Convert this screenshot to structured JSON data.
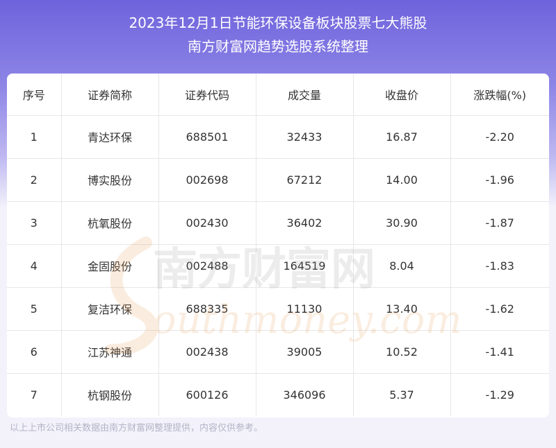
{
  "title": {
    "line1": "2023年12月1日节能环保设备板块股票七大熊股",
    "line2": "南方财富网趋势选股系统整理"
  },
  "table": {
    "headers": [
      "序号",
      "证券简称",
      "证券代码",
      "成交量",
      "收盘价",
      "涨跌幅(%)"
    ],
    "rows": [
      [
        "1",
        "青达环保",
        "688501",
        "32433",
        "16.87",
        "-2.20"
      ],
      [
        "2",
        "博实股份",
        "002698",
        "67212",
        "14.00",
        "-1.96"
      ],
      [
        "3",
        "杭氧股份",
        "002430",
        "36402",
        "30.90",
        "-1.87"
      ],
      [
        "4",
        "金固股份",
        "002488",
        "164519",
        "8.04",
        "-1.83"
      ],
      [
        "5",
        "复洁环保",
        "688335",
        "11130",
        "13.40",
        "-1.62"
      ],
      [
        "6",
        "江苏神通",
        "002438",
        "39005",
        "10.52",
        "-1.41"
      ],
      [
        "7",
        "杭钢股份",
        "600126",
        "346096",
        "5.37",
        "-1.29"
      ]
    ]
  },
  "watermark": {
    "cn": "南方财富网",
    "en": "outhmoney.com"
  },
  "footer": "以上上市公司相关数据由南方财富网整理提供，内容仅供参考。",
  "colors": {
    "header_top": "#6f63dc",
    "background": "#f3f2fb",
    "text": "#333333",
    "watermark": "#e8a05a"
  }
}
